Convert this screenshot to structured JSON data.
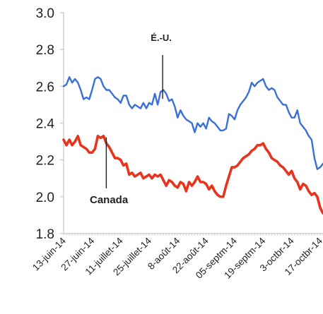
{
  "chart_data": {
    "type": "line",
    "title": "",
    "xlabel": "",
    "ylabel": "",
    "ylim": [
      1.8,
      3.0
    ],
    "yticks": [
      "3.0",
      "2.8",
      "2.6",
      "2.4",
      "2.2",
      "2.0",
      "1.8"
    ],
    "xticks": [
      "13-juin-14",
      "27-juin-14",
      "11-juillet-14",
      "25-juillet-14",
      "8-août-14",
      "22-août-14",
      "05-septm-14",
      "19-septm-14",
      "3-octbr-14",
      "17-octbr-14"
    ],
    "grid": false,
    "legend": "none",
    "x": [
      "2014-06-13",
      "2014-06-16",
      "2014-06-17",
      "2014-06-18",
      "2014-06-19",
      "2014-06-20",
      "2014-06-23",
      "2014-06-24",
      "2014-06-25",
      "2014-06-26",
      "2014-06-27",
      "2014-06-30",
      "2014-07-01",
      "2014-07-02",
      "2014-07-03",
      "2014-07-04",
      "2014-07-07",
      "2014-07-08",
      "2014-07-09",
      "2014-07-10",
      "2014-07-11",
      "2014-07-14",
      "2014-07-15",
      "2014-07-16",
      "2014-07-17",
      "2014-07-18",
      "2014-07-21",
      "2014-07-22",
      "2014-07-23",
      "2014-07-24",
      "2014-07-25",
      "2014-07-28",
      "2014-07-29",
      "2014-07-30",
      "2014-07-31",
      "2014-08-01",
      "2014-08-04",
      "2014-08-05",
      "2014-08-06",
      "2014-08-07",
      "2014-08-08",
      "2014-08-11",
      "2014-08-12",
      "2014-08-13",
      "2014-08-14",
      "2014-08-15",
      "2014-08-18",
      "2014-08-19",
      "2014-08-20",
      "2014-08-21",
      "2014-08-22",
      "2014-08-25",
      "2014-08-26",
      "2014-08-27",
      "2014-08-28",
      "2014-08-29",
      "2014-09-01",
      "2014-09-02",
      "2014-09-03",
      "2014-09-04",
      "2014-09-05",
      "2014-09-08",
      "2014-09-09",
      "2014-09-10",
      "2014-09-11",
      "2014-09-12",
      "2014-09-15",
      "2014-09-16",
      "2014-09-17",
      "2014-09-18",
      "2014-09-19",
      "2014-09-22",
      "2014-09-23",
      "2014-09-24",
      "2014-09-25",
      "2014-09-26",
      "2014-09-29",
      "2014-09-30",
      "2014-10-01",
      "2014-10-02",
      "2014-10-03",
      "2014-10-06",
      "2014-10-07",
      "2014-10-08",
      "2014-10-09",
      "2014-10-10",
      "2014-10-13",
      "2014-10-14",
      "2014-10-15",
      "2014-10-16",
      "2014-10-17",
      "2014-10-20"
    ],
    "series": [
      {
        "name": "É.-U.",
        "color": "#3b6fd8",
        "values": [
          2.6,
          2.61,
          2.65,
          2.62,
          2.64,
          2.62,
          2.58,
          2.53,
          2.54,
          2.53,
          2.58,
          2.64,
          2.65,
          2.64,
          2.6,
          2.58,
          2.58,
          2.56,
          2.54,
          2.53,
          2.51,
          2.55,
          2.55,
          2.5,
          2.48,
          2.5,
          2.49,
          2.48,
          2.51,
          2.48,
          2.51,
          2.5,
          2.56,
          2.5,
          2.57,
          2.58,
          2.56,
          2.52,
          2.53,
          2.49,
          2.43,
          2.47,
          2.44,
          2.42,
          2.41,
          2.4,
          2.35,
          2.4,
          2.38,
          2.4,
          2.37,
          2.43,
          2.41,
          2.4,
          2.38,
          2.36,
          2.36,
          2.37,
          2.45,
          2.44,
          2.42,
          2.47,
          2.5,
          2.52,
          2.54,
          2.57,
          2.62,
          2.6,
          2.62,
          2.63,
          2.64,
          2.6,
          2.58,
          2.59,
          2.58,
          2.54,
          2.52,
          2.5,
          2.5,
          2.46,
          2.43,
          2.43,
          2.47,
          2.4,
          2.38,
          2.36,
          2.33,
          2.31,
          2.21,
          2.15,
          2.16,
          2.18
        ]
      },
      {
        "name": "Canada",
        "color": "#e8341c",
        "values": [
          2.31,
          2.28,
          2.31,
          2.28,
          2.3,
          2.33,
          2.28,
          2.27,
          2.26,
          2.24,
          2.24,
          2.26,
          2.33,
          2.32,
          2.33,
          2.29,
          2.27,
          2.24,
          2.21,
          2.21,
          2.2,
          2.17,
          2.18,
          2.12,
          2.13,
          2.11,
          2.12,
          2.13,
          2.1,
          2.11,
          2.12,
          2.1,
          2.12,
          2.11,
          2.12,
          2.09,
          2.06,
          2.09,
          2.08,
          2.06,
          2.05,
          2.08,
          2.07,
          2.03,
          2.08,
          2.06,
          2.08,
          2.11,
          2.08,
          2.08,
          2.07,
          2.04,
          2.06,
          2.03,
          2.01,
          2.0,
          2.0,
          2.06,
          2.11,
          2.16,
          2.16,
          2.17,
          2.19,
          2.21,
          2.22,
          2.23,
          2.25,
          2.26,
          2.28,
          2.28,
          2.29,
          2.26,
          2.24,
          2.21,
          2.2,
          2.19,
          2.17,
          2.16,
          2.14,
          2.12,
          2.14,
          2.1,
          2.08,
          2.04,
          2.07,
          2.06,
          2.03,
          2.01,
          2.02,
          2.0,
          1.94,
          1.91
        ]
      }
    ],
    "annotations": [
      {
        "text": "É.-U.",
        "series": 0
      },
      {
        "text": "Canada",
        "series": 1
      }
    ]
  }
}
